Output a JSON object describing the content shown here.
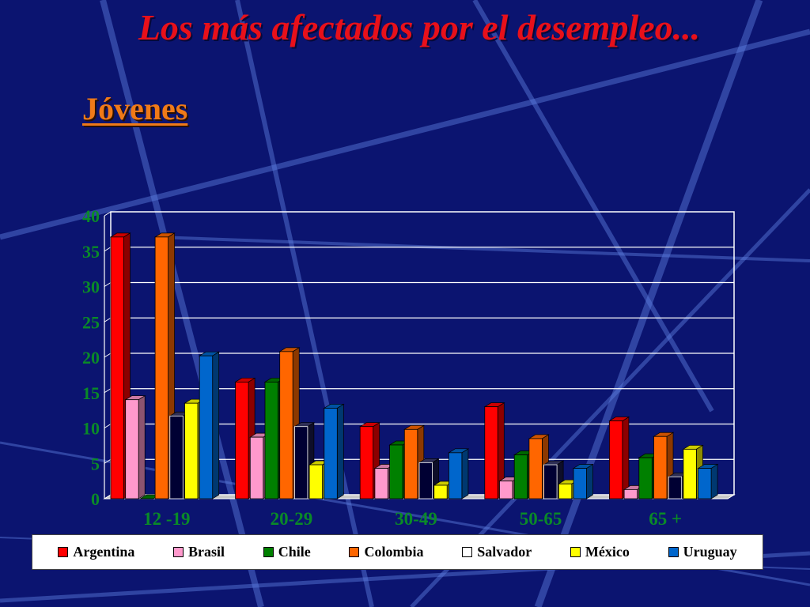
{
  "slide": {
    "title": "Los más afectados por el desempleo...",
    "subtitle": "Jóvenes"
  },
  "chart_data": {
    "type": "bar",
    "title": "",
    "xlabel": "",
    "ylabel": "",
    "ylim": [
      0,
      40
    ],
    "yticks": [
      0,
      5,
      10,
      15,
      20,
      25,
      30,
      35,
      40
    ],
    "grid": true,
    "legend_position": "bottom",
    "categories": [
      "12 -19",
      "20-29",
      "30-49",
      "50-65",
      "65 +"
    ],
    "series": [
      {
        "name": "Argentina",
        "color": "#ff0000",
        "values": [
          37,
          16.5,
          10.2,
          13,
          11
        ]
      },
      {
        "name": "Brasil",
        "color": "#ff99cc",
        "values": [
          14,
          8.7,
          4.3,
          2.5,
          1.3
        ]
      },
      {
        "name": "Chile",
        "color": "#008000",
        "values": [
          0,
          16.5,
          7.6,
          6.2,
          5.8
        ]
      },
      {
        "name": "Colombia",
        "color": "#ff6600",
        "values": [
          37,
          20.8,
          9.8,
          8.5,
          8.8
        ]
      },
      {
        "name": "Salvador",
        "color": "#000033",
        "values": [
          11.7,
          10.2,
          5.1,
          4.8,
          3.1
        ]
      },
      {
        "name": "México",
        "color": "#ffff00",
        "values": [
          13.5,
          4.8,
          1.9,
          2.1,
          7
        ]
      },
      {
        "name": "Uruguay",
        "color": "#0066cc",
        "values": [
          20.2,
          12.8,
          6.5,
          4.3,
          4.3
        ]
      }
    ]
  }
}
